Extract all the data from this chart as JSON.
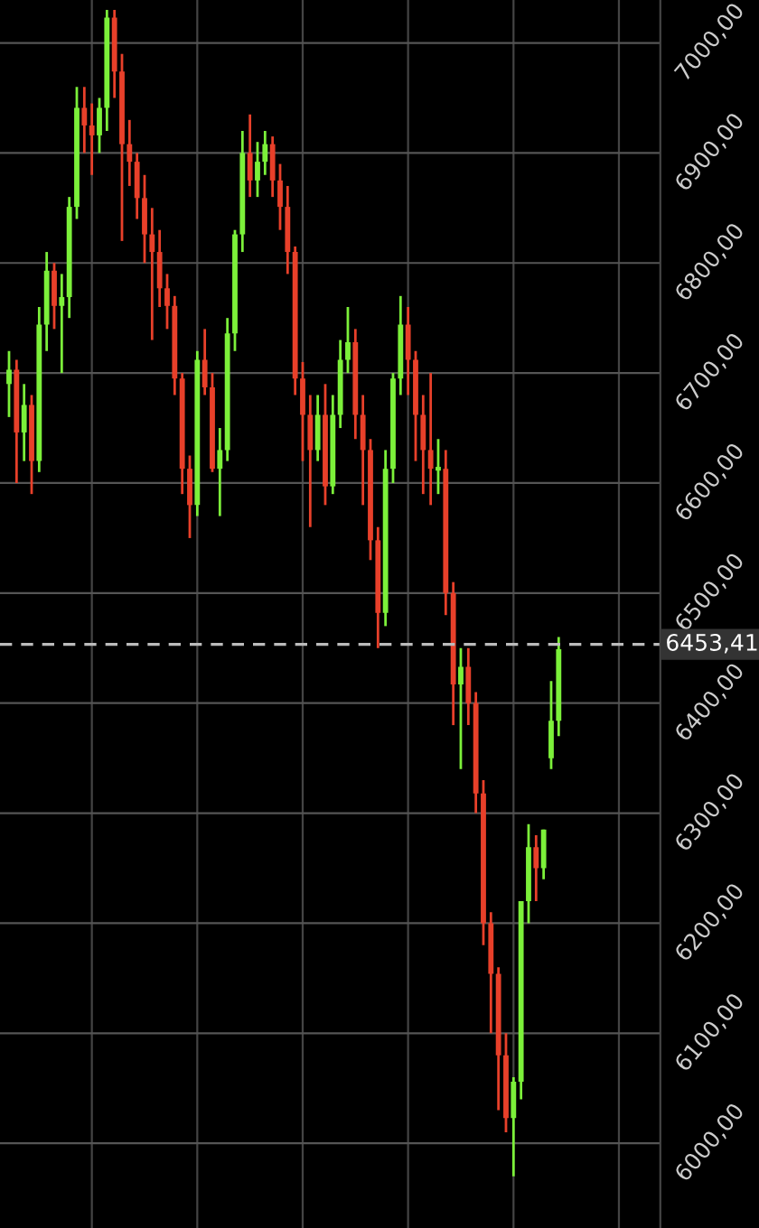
{
  "chart_data": {
    "type": "candlestick",
    "categories": [
      null,
      null,
      null,
      null,
      null,
      null,
      null,
      null,
      null,
      null,
      null,
      null,
      null,
      null,
      null,
      null,
      null,
      null,
      null,
      null,
      null,
      null,
      null,
      null,
      null,
      null,
      null,
      null,
      null,
      null,
      null,
      null,
      null,
      null,
      null,
      null,
      null,
      null,
      null,
      null,
      null,
      null,
      null,
      null,
      null,
      null,
      null,
      null,
      null,
      null,
      null,
      null,
      null,
      null,
      null,
      null,
      null,
      null,
      null,
      null,
      null,
      null,
      null,
      null,
      null,
      null,
      null,
      null,
      null,
      null,
      null,
      null,
      null,
      null
    ],
    "ohlc": [
      [
        6690,
        6720,
        6660,
        6703
      ],
      [
        6703,
        6712,
        6600,
        6646
      ],
      [
        6646,
        6690,
        6620,
        6671
      ],
      [
        6671,
        6680,
        6590,
        6620
      ],
      [
        6620,
        6760,
        6610,
        6744
      ],
      [
        6744,
        6810,
        6720,
        6793
      ],
      [
        6793,
        6800,
        6740,
        6761
      ],
      [
        6761,
        6790,
        6700,
        6769
      ],
      [
        6769,
        6860,
        6750,
        6851
      ],
      [
        6851,
        6960,
        6840,
        6941
      ],
      [
        6941,
        6960,
        6900,
        6925
      ],
      [
        6925,
        6945,
        6880,
        6916
      ],
      [
        6916,
        6950,
        6900,
        6941
      ],
      [
        6941,
        7030,
        6920,
        7023
      ],
      [
        7023,
        7030,
        6950,
        6974
      ],
      [
        6974,
        6990,
        6820,
        6908
      ],
      [
        6908,
        6930,
        6870,
        6892
      ],
      [
        6892,
        6900,
        6840,
        6859
      ],
      [
        6859,
        6880,
        6800,
        6826
      ],
      [
        6826,
        6850,
        6730,
        6810
      ],
      [
        6810,
        6830,
        6760,
        6777
      ],
      [
        6777,
        6790,
        6740,
        6761
      ],
      [
        6761,
        6770,
        6680,
        6695
      ],
      [
        6695,
        6700,
        6590,
        6613
      ],
      [
        6613,
        6625,
        6550,
        6580
      ],
      [
        6580,
        6720,
        6570,
        6712
      ],
      [
        6712,
        6740,
        6680,
        6687
      ],
      [
        6687,
        6700,
        6610,
        6613
      ],
      [
        6613,
        6650,
        6570,
        6630
      ],
      [
        6630,
        6750,
        6620,
        6736
      ],
      [
        6736,
        6830,
        6720,
        6826
      ],
      [
        6826,
        6920,
        6810,
        6900
      ],
      [
        6900,
        6935,
        6860,
        6875
      ],
      [
        6875,
        6910,
        6860,
        6892
      ],
      [
        6892,
        6920,
        6880,
        6908
      ],
      [
        6908,
        6915,
        6860,
        6875
      ],
      [
        6875,
        6890,
        6830,
        6851
      ],
      [
        6851,
        6870,
        6790,
        6810
      ],
      [
        6810,
        6815,
        6680,
        6695
      ],
      [
        6695,
        6710,
        6620,
        6662
      ],
      [
        6662,
        6680,
        6560,
        6630
      ],
      [
        6630,
        6680,
        6620,
        6662
      ],
      [
        6662,
        6690,
        6580,
        6597
      ],
      [
        6597,
        6680,
        6590,
        6662
      ],
      [
        6662,
        6730,
        6650,
        6712
      ],
      [
        6712,
        6760,
        6700,
        6728
      ],
      [
        6728,
        6740,
        6640,
        6662
      ],
      [
        6662,
        6680,
        6580,
        6630
      ],
      [
        6630,
        6640,
        6530,
        6548
      ],
      [
        6548,
        6560,
        6450,
        6482
      ],
      [
        6482,
        6630,
        6470,
        6613
      ],
      [
        6613,
        6700,
        6600,
        6695
      ],
      [
        6695,
        6770,
        6680,
        6744
      ],
      [
        6744,
        6760,
        6680,
        6712
      ],
      [
        6712,
        6720,
        6620,
        6662
      ],
      [
        6662,
        6680,
        6590,
        6630
      ],
      [
        6630,
        6700,
        6580,
        6613
      ],
      [
        6613,
        6640,
        6590,
        6613
      ],
      [
        6613,
        6630,
        6480,
        6500
      ],
      [
        6500,
        6510,
        6380,
        6417
      ],
      [
        6417,
        6450,
        6340,
        6433
      ],
      [
        6433,
        6450,
        6380,
        6400
      ],
      [
        6400,
        6410,
        6300,
        6318
      ],
      [
        6318,
        6330,
        6180,
        6200
      ],
      [
        6200,
        6210,
        6100,
        6154
      ],
      [
        6154,
        6160,
        6030,
        6080
      ],
      [
        6080,
        6100,
        6010,
        6023
      ],
      [
        6023,
        6060,
        5970,
        6056
      ],
      [
        6056,
        6220,
        6040,
        6220
      ],
      [
        6220,
        6290,
        6200,
        6269
      ],
      [
        6269,
        6280,
        6220,
        6250
      ],
      [
        6250,
        6285,
        6240,
        6285
      ],
      [
        6350,
        6420,
        6340,
        6384
      ],
      [
        6384,
        6460,
        6370,
        6449
      ]
    ],
    "colors": [
      "#7cf03a",
      "#e8402a",
      "#7cf03a",
      "#e8402a",
      "#7cf03a",
      "#7cf03a",
      "#e8402a",
      "#7cf03a",
      "#7cf03a",
      "#7cf03a",
      "#e8402a",
      "#e8402a",
      "#7cf03a",
      "#7cf03a",
      "#e8402a",
      "#e8402a",
      "#e8402a",
      "#e8402a",
      "#e8402a",
      "#e8402a",
      "#e8402a",
      "#e8402a",
      "#e8402a",
      "#e8402a",
      "#e8402a",
      "#7cf03a",
      "#e8402a",
      "#e8402a",
      "#7cf03a",
      "#7cf03a",
      "#7cf03a",
      "#7cf03a",
      "#e8402a",
      "#7cf03a",
      "#7cf03a",
      "#e8402a",
      "#e8402a",
      "#e8402a",
      "#e8402a",
      "#e8402a",
      "#e8402a",
      "#7cf03a",
      "#e8402a",
      "#7cf03a",
      "#7cf03a",
      "#7cf03a",
      "#e8402a",
      "#e8402a",
      "#e8402a",
      "#e8402a",
      "#7cf03a",
      "#7cf03a",
      "#7cf03a",
      "#e8402a",
      "#e8402a",
      "#e8402a",
      "#e8402a",
      "#7cf03a",
      "#e8402a",
      "#e8402a",
      "#7cf03a",
      "#e8402a",
      "#e8402a",
      "#e8402a",
      "#e8402a",
      "#e8402a",
      "#e8402a",
      "#7cf03a",
      "#7cf03a",
      "#7cf03a",
      "#e8402a",
      "#7cf03a",
      "#7cf03a",
      "#7cf03a"
    ],
    "ylim": [
      5923,
      7039
    ],
    "yticks": [
      {
        "value": 6000,
        "label": "6000,00"
      },
      {
        "value": 6100,
        "label": "6100,00"
      },
      {
        "value": 6200,
        "label": "6200,00"
      },
      {
        "value": 6300,
        "label": "6300,00"
      },
      {
        "value": 6400,
        "label": "6400,00"
      },
      {
        "value": 6500,
        "label": "6500,00"
      },
      {
        "value": 6600,
        "label": "6600,00"
      },
      {
        "value": 6700,
        "label": "6700,00"
      },
      {
        "value": 6800,
        "label": "6800,00"
      },
      {
        "value": 6900,
        "label": "6900,00"
      },
      {
        "value": 7000,
        "label": "7000,00"
      }
    ],
    "ref_lines": [
      {
        "axis": "y",
        "value": 6453.41,
        "label": "6453,41",
        "color": "#bbbbbb",
        "line_style": "dashed"
      }
    ],
    "grid": true,
    "tick_labels": "y"
  }
}
